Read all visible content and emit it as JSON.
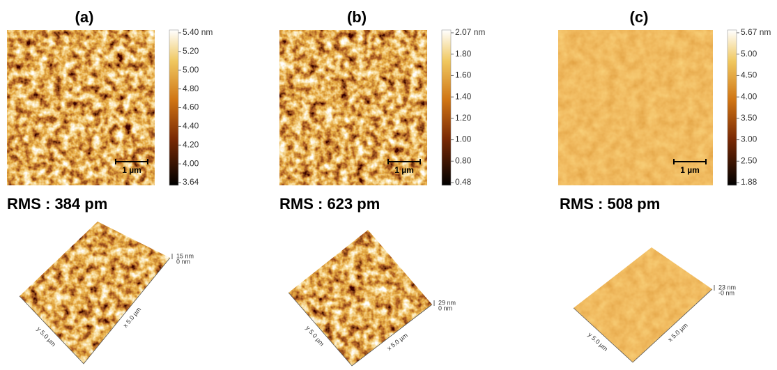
{
  "panels": [
    {
      "label": "(a)",
      "colorbar": [
        "5.40 nm",
        "5.20",
        "5.00",
        "4.80",
        "4.60",
        "4.40",
        "4.20",
        "4.00",
        "3.64"
      ],
      "scale_bar": "1 µm",
      "rms": "RMS : 384 pm",
      "view3d": {
        "z_top": "15 nm",
        "z_bottom": "0 nm",
        "y_axis": "y 5.0 µm",
        "x_axis": "x 5.0 µm"
      }
    },
    {
      "label": "(b)",
      "colorbar": [
        "2.07 nm",
        "1.80",
        "1.60",
        "1.40",
        "1.20",
        "1.00",
        "0.80",
        "0.48"
      ],
      "scale_bar": "1 µm",
      "rms": "RMS : 623 pm",
      "view3d": {
        "z_top": "29 nm",
        "z_bottom": "0 nm",
        "y_axis": "y 5.0 µm",
        "x_axis": "x 5.0 µm"
      }
    },
    {
      "label": "(c)",
      "colorbar": [
        "5.67 nm",
        "5.00",
        "4.50",
        "4.00",
        "3.50",
        "3.00",
        "2.50",
        "1.88"
      ],
      "scale_bar": "1 µm",
      "rms": "RMS : 508 pm",
      "view3d": {
        "z_top": "23 nm",
        "z_bottom": "-0 nm",
        "y_axis": "y 5.0 µm",
        "x_axis": "x 5.0 µm"
      }
    }
  ]
}
